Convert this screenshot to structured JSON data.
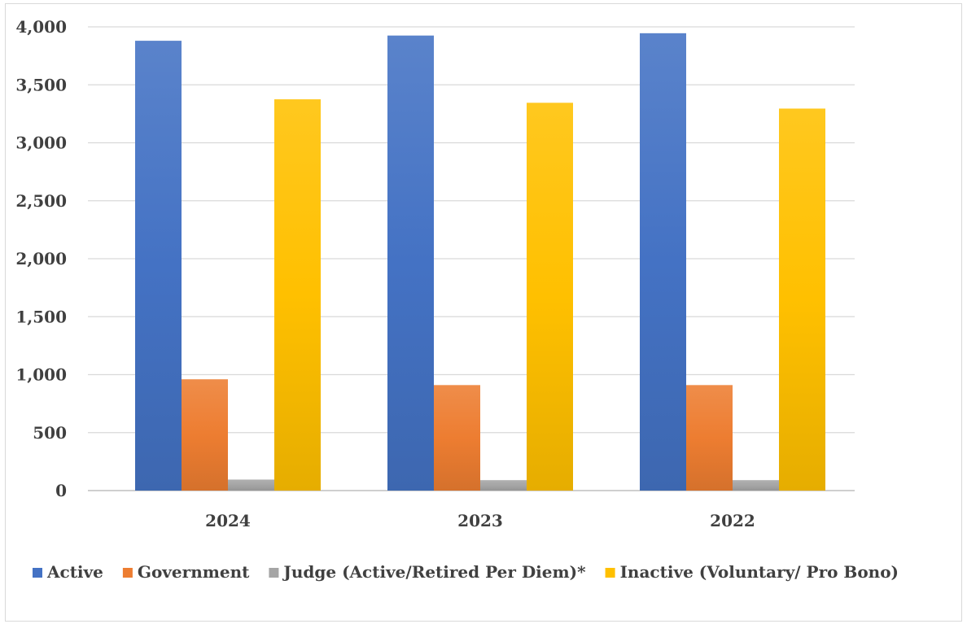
{
  "chart_data": {
    "type": "bar",
    "title": "",
    "xlabel": "",
    "ylabel": "",
    "categories": [
      "2024",
      "2023",
      "2022"
    ],
    "ylim": [
      0,
      4000
    ],
    "yticks": [
      0,
      500,
      1000,
      1500,
      2000,
      2500,
      3000,
      3500,
      4000
    ],
    "ytick_labels": [
      "0",
      "500",
      "1,000",
      "1,500",
      "2,000",
      "2,500",
      "3,000",
      "3,500",
      "4,000"
    ],
    "grid": true,
    "legend_position": "bottom",
    "series": [
      {
        "name": "Active",
        "values": [
          3880,
          3925,
          3945
        ],
        "color": "#4472C4"
      },
      {
        "name": "Government",
        "values": [
          960,
          910,
          910
        ],
        "color": "#ED7D31"
      },
      {
        "name": "Judge (Active/Retired Per Diem)*",
        "values": [
          95,
          90,
          90
        ],
        "color": "#A5A5A5"
      },
      {
        "name": "Inactive (Voluntary/ Pro Bono)",
        "values": [
          3375,
          3345,
          3295
        ],
        "color": "#FFC000"
      }
    ]
  }
}
